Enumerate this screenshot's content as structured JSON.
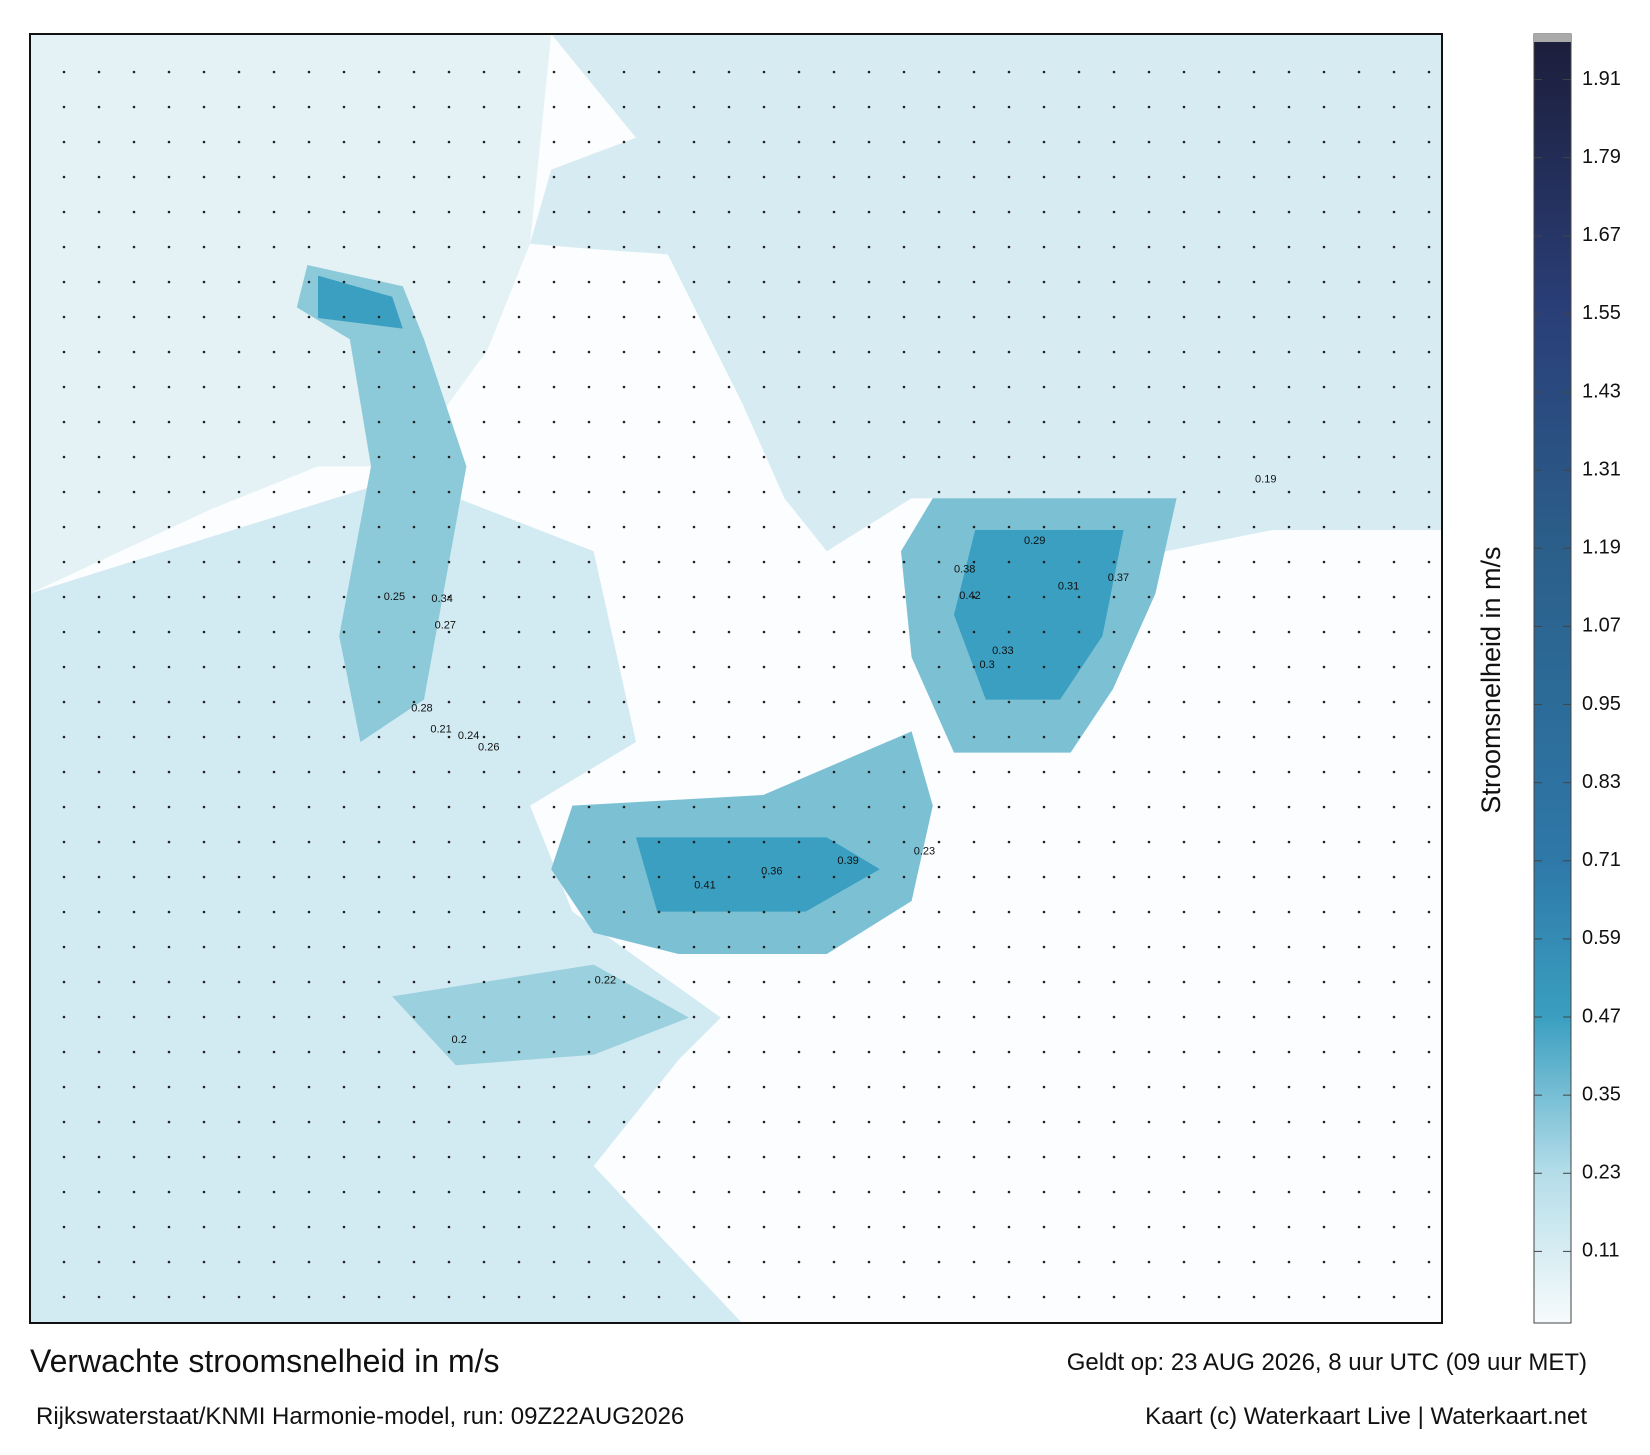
{
  "title": "Verwachte stroomsnelheid in m/s",
  "model_run": "Rijkswaterstaat/KNMI Harmonie-model, run: 09Z22AUG2026",
  "valid_time": "Geldt op: 23 AUG 2026, 8 uur UTC (09 uur MET)",
  "credit": "Kaart (c) Waterkaart Live | Waterkaart.net",
  "colorbar": {
    "label": "Stroomsnelheid in m/s",
    "clim": [
      0,
      1.98
    ],
    "ticks": [
      0.11,
      0.23,
      0.35,
      0.47,
      0.59,
      0.71,
      0.83,
      0.95,
      1.07,
      1.19,
      1.31,
      1.43,
      1.55,
      1.67,
      1.79,
      1.91
    ],
    "colorscale": [
      {
        "value": 0,
        "color": "#f7fbfc"
      },
      {
        "value": 0.23,
        "color": "#b4dde9"
      },
      {
        "value": 0.47,
        "color": "#3a9fc0"
      },
      {
        "value": 0.71,
        "color": "#2e78a8"
      },
      {
        "value": 1.19,
        "color": "#2b5f8a"
      },
      {
        "value": 1.55,
        "color": "#2a3f78"
      },
      {
        "value": 1.98,
        "color": "#1c1d3a"
      }
    ]
  },
  "map_labels": [
    0.42,
    0.41,
    0.39,
    0.38,
    0.37,
    0.36,
    0.34,
    0.33,
    0.31,
    0.3,
    0.29,
    0.28,
    0.27,
    0.26,
    0.25,
    0.24,
    0.23,
    0.22,
    0.21,
    0.2,
    0.19
  ]
}
